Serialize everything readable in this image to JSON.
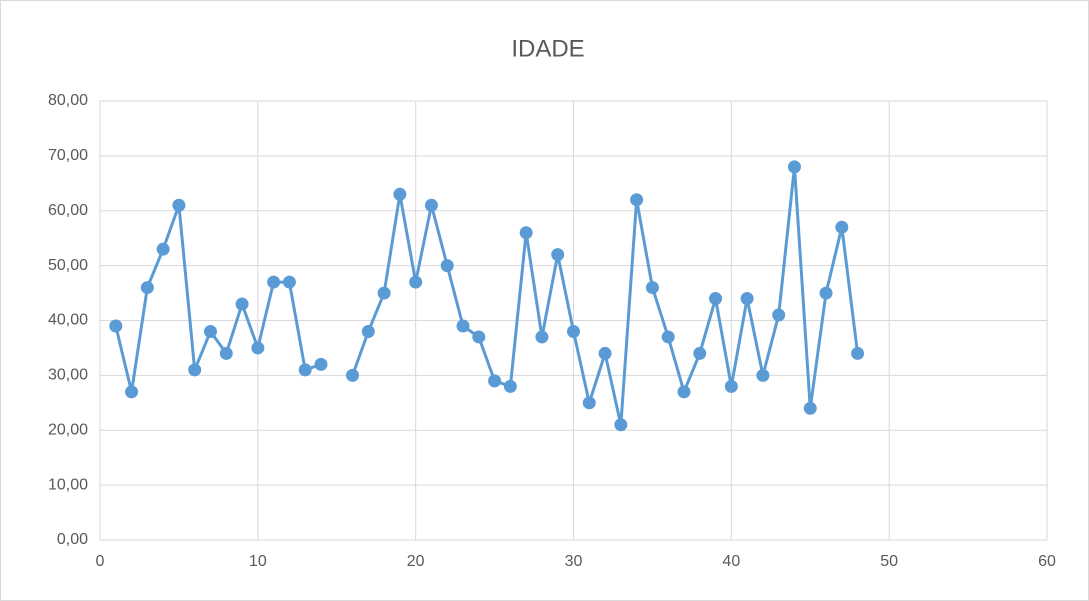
{
  "chart_data": {
    "type": "line",
    "title": "IDADE",
    "x": [
      1,
      2,
      3,
      4,
      5,
      6,
      7,
      8,
      9,
      10,
      11,
      12,
      13,
      14,
      15,
      16,
      17,
      18,
      19,
      20,
      21,
      22,
      23,
      24,
      25,
      26,
      27,
      28,
      29,
      30,
      31,
      32,
      33,
      34,
      35,
      36,
      37,
      38,
      39,
      40,
      41,
      42,
      43,
      44,
      45,
      46,
      47,
      48
    ],
    "series": [
      {
        "name": "IDADE",
        "color": "#5b9bd5",
        "values": [
          39,
          27,
          46,
          53,
          61,
          31,
          38,
          34,
          43,
          35,
          47,
          47,
          31,
          32,
          null,
          30,
          38,
          45,
          63,
          47,
          61,
          50,
          39,
          37,
          29,
          28,
          56,
          37,
          52,
          38,
          25,
          34,
          21,
          62,
          46,
          37,
          27,
          34,
          44,
          28,
          44,
          30,
          41,
          68,
          24,
          45,
          57,
          34
        ]
      }
    ],
    "xlim": [
      0,
      60
    ],
    "xticks": [
      0,
      10,
      20,
      30,
      40,
      50,
      60
    ],
    "ylim": [
      0,
      80
    ],
    "yticks": [
      {
        "value": 0,
        "label": "0,00"
      },
      {
        "value": 10,
        "label": "10,00"
      },
      {
        "value": 20,
        "label": "20,00"
      },
      {
        "value": 30,
        "label": "30,00"
      },
      {
        "value": 40,
        "label": "40,00"
      },
      {
        "value": 50,
        "label": "50,00"
      },
      {
        "value": 60,
        "label": "60,00"
      },
      {
        "value": 70,
        "label": "70,00"
      },
      {
        "value": 80,
        "label": "80,00"
      }
    ],
    "grid": true
  }
}
